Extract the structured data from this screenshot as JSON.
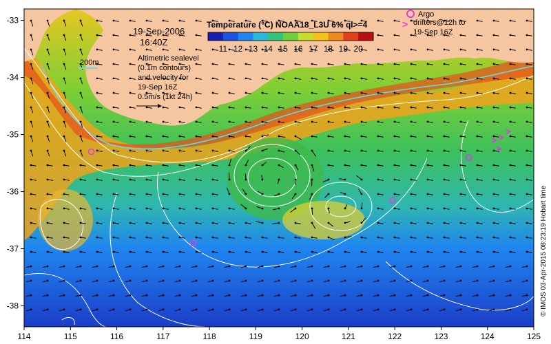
{
  "map": {
    "title": "Temperature (°C) NOAA18_L3U 6% ql>=4",
    "date": "19-Sep-2006",
    "time": "16:40Z",
    "colorbar_ticks": [
      "11",
      "12",
      "13",
      "14",
      "15",
      "16",
      "17",
      "18",
      "19",
      "20"
    ],
    "colorbar_colors": [
      "#1b1fb0",
      "#1c52e0",
      "#1f86f0",
      "#2ab8d8",
      "#33c37a",
      "#6fcf3a",
      "#c7dc2c",
      "#f2c21a",
      "#f08820",
      "#e04018",
      "#b81010"
    ],
    "legend_200m": "200m",
    "altimetric_lines": [
      "Altimetric sealevel",
      "(0.1m contours)",
      "and velocity for",
      "19-Sep 16Z",
      "0.5m/s (1kt 24h)"
    ],
    "argo_lines": [
      "Argo",
      "drifters@12h to",
      "19-Sep 16Z"
    ],
    "argo_marker_label": ">",
    "copyright": "© IMOS 03-Apr-2015 08:23:19 Hobart time",
    "x_ticks": [
      "114",
      "115",
      "116",
      "117",
      "118",
      "119",
      "120",
      "121",
      "122",
      "123",
      "124",
      "125"
    ],
    "y_ticks": [
      "-33",
      "-34",
      "-35",
      "-36",
      "-37",
      "-38"
    ],
    "argo_positions": [
      {
        "lon": 115.45,
        "lat": -35.3
      },
      {
        "lon": 117.65,
        "lat": -36.9
      },
      {
        "lon": 121.95,
        "lat": -36.15
      },
      {
        "lon": 123.6,
        "lat": -35.4
      }
    ],
    "colors": {
      "land": "#f6c6a0",
      "argo": "#e23ce0",
      "contour": "#ffffff",
      "isobath": "#6fd8e6"
    }
  }
}
